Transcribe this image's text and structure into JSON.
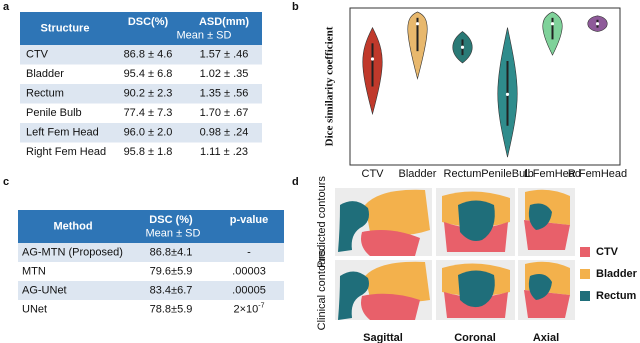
{
  "panel_a": {
    "label": "a",
    "table": {
      "header": [
        "Structure",
        "DSC(%)",
        "ASD(mm)"
      ],
      "subheader": "Mean ± SD",
      "rows": [
        [
          "CTV",
          "86.8 ± 4.6",
          "1.57 ± .46"
        ],
        [
          "Bladder",
          "95.4 ± 6.8",
          "1.02 ± .35"
        ],
        [
          "Rectum",
          "90.2 ± 2.3",
          "1.35 ± .56"
        ],
        [
          "Penile Bulb",
          "77.4 ± 7.3",
          "1.70 ± .67"
        ],
        [
          "Left Fem Head",
          "96.0 ± 2.0",
          "0.98 ± .24"
        ],
        [
          "Right Fem Head",
          "95.8 ± 1.8",
          "1.11 ± .23"
        ]
      ]
    }
  },
  "panel_b": {
    "label": "b",
    "chart_data": {
      "type": "violin",
      "y_label": "Dice similarity coefficient",
      "categories": [
        "CTV",
        "Bladder",
        "Rectum",
        "PenileBulb",
        "L FemHead",
        "R FemHead"
      ],
      "colors": [
        "#c0392b",
        "#e8b86d",
        "#2a7a76",
        "#2f8c8c",
        "#7fd29a",
        "#8e5a99"
      ],
      "mins": [
        0.73,
        0.82,
        0.86,
        0.62,
        0.88,
        0.94
      ],
      "maxs": [
        0.95,
        0.99,
        0.94,
        0.95,
        0.99,
        0.98
      ],
      "medians": [
        0.87,
        0.96,
        0.9,
        0.78,
        0.96,
        0.96
      ],
      "ylim": [
        0.6,
        1.0
      ]
    }
  },
  "panel_c": {
    "label": "c",
    "table": {
      "header": [
        "Method",
        "DSC (%)",
        "p-value"
      ],
      "subheader": "Mean ± SD",
      "rows": [
        [
          "AG-MTN (Proposed)",
          "86.8±4.1",
          "-"
        ],
        [
          "MTN",
          "79.6±5.9",
          ".00003"
        ],
        [
          "AG-UNet",
          "83.4±6.7",
          ".00005"
        ],
        [
          "UNet",
          "78.8±5.9",
          {
            "base": "2×10",
            "exp": "-7"
          }
        ]
      ]
    }
  },
  "panel_d": {
    "label": "d",
    "row_labels": [
      "Predicted contours",
      "Clinical contours"
    ],
    "column_labels": [
      "Sagittal",
      "Coronal",
      "Axial"
    ],
    "legend": [
      {
        "name": "CTV",
        "color": "#e8606a"
      },
      {
        "name": "Bladder",
        "color": "#f3b14c"
      },
      {
        "name": "Rectum",
        "color": "#1f6e7a"
      }
    ]
  }
}
